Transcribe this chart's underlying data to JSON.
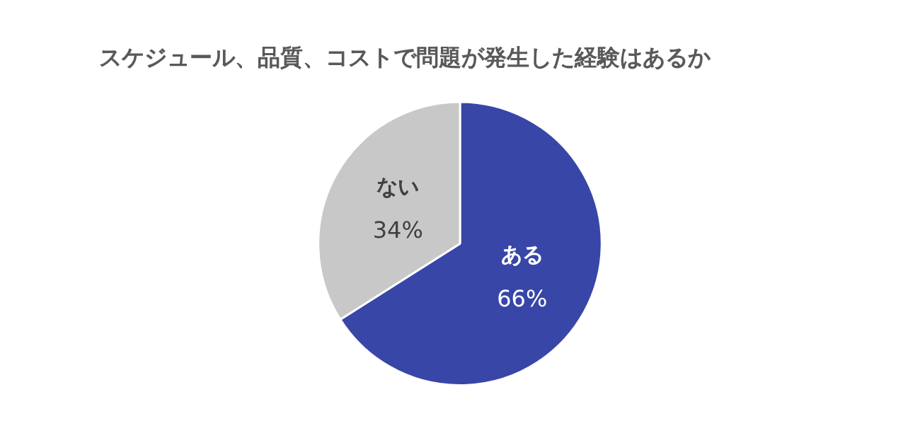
{
  "chart_data": {
    "type": "pie",
    "title": "スケジュール、品質、コストで問題が発生した経験はあるか",
    "categories": [
      "ある",
      "ない"
    ],
    "values": [
      66,
      34
    ],
    "value_labels": [
      "66%",
      "34%"
    ],
    "colors": [
      "#3846a8",
      "#c8c8c8"
    ],
    "legend": false
  }
}
